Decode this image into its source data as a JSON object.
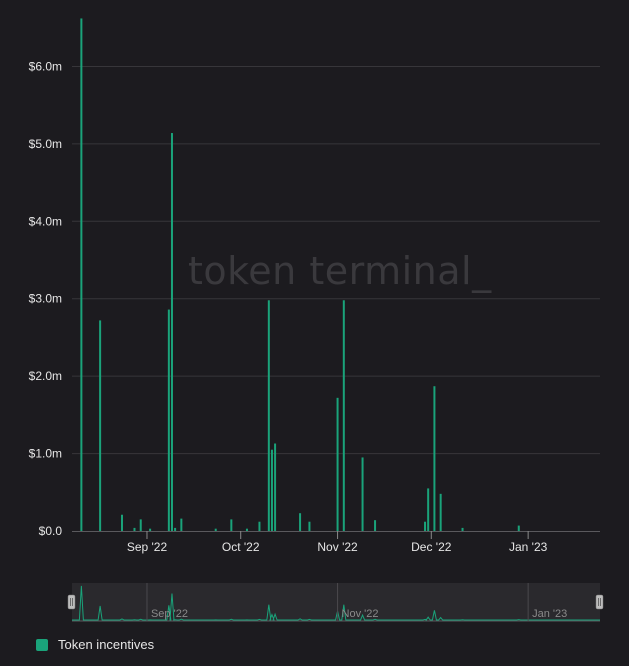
{
  "colors": {
    "background": "#1c1b1f",
    "series": "#1aa37a",
    "grid": "#37363a",
    "watermark": "#3a393d",
    "navigator_bg": "#2a292d"
  },
  "watermark": "token terminal_",
  "legend": {
    "label": "Token incentives"
  },
  "chart_data": {
    "type": "bar",
    "x_axis": {
      "type": "date",
      "range": [
        "2022-08-08",
        "2023-01-24"
      ],
      "ticks": [
        {
          "date": "2022-09-01",
          "label": "Sep '22"
        },
        {
          "date": "2022-10-01",
          "label": "Oct '22"
        },
        {
          "date": "2022-11-01",
          "label": "Nov '22"
        },
        {
          "date": "2022-12-01",
          "label": "Dec '22"
        },
        {
          "date": "2023-01-01",
          "label": "Jan '23"
        }
      ]
    },
    "y_axis": {
      "range": [
        0,
        6.6
      ],
      "unit": "$m",
      "ticks": [
        {
          "value": 0,
          "label": "$0.0"
        },
        {
          "value": 1,
          "label": "$1.0m"
        },
        {
          "value": 2,
          "label": "$2.0m"
        },
        {
          "value": 3,
          "label": "$3.0m"
        },
        {
          "value": 4,
          "label": "$4.0m"
        },
        {
          "value": 5,
          "label": "$5.0m"
        },
        {
          "value": 6,
          "label": "$6.0m"
        }
      ]
    },
    "grid": true,
    "legend_position": "bottom-left",
    "series": [
      {
        "name": "Token incentives",
        "points": [
          {
            "date": "2022-08-11",
            "value": 6.62
          },
          {
            "date": "2022-08-17",
            "value": 2.72
          },
          {
            "date": "2022-08-24",
            "value": 0.21
          },
          {
            "date": "2022-08-28",
            "value": 0.04
          },
          {
            "date": "2022-08-30",
            "value": 0.15
          },
          {
            "date": "2022-09-02",
            "value": 0.03
          },
          {
            "date": "2022-09-08",
            "value": 2.86
          },
          {
            "date": "2022-09-09",
            "value": 5.14
          },
          {
            "date": "2022-09-10",
            "value": 0.04
          },
          {
            "date": "2022-09-12",
            "value": 0.16
          },
          {
            "date": "2022-09-23",
            "value": 0.03
          },
          {
            "date": "2022-09-28",
            "value": 0.15
          },
          {
            "date": "2022-10-03",
            "value": 0.03
          },
          {
            "date": "2022-10-07",
            "value": 0.12
          },
          {
            "date": "2022-10-10",
            "value": 2.98
          },
          {
            "date": "2022-10-11",
            "value": 1.05
          },
          {
            "date": "2022-10-12",
            "value": 1.13
          },
          {
            "date": "2022-10-20",
            "value": 0.23
          },
          {
            "date": "2022-10-23",
            "value": 0.12
          },
          {
            "date": "2022-11-01",
            "value": 1.72
          },
          {
            "date": "2022-11-03",
            "value": 2.98
          },
          {
            "date": "2022-11-09",
            "value": 0.95
          },
          {
            "date": "2022-11-13",
            "value": 0.14
          },
          {
            "date": "2022-11-29",
            "value": 0.12
          },
          {
            "date": "2022-11-30",
            "value": 0.55
          },
          {
            "date": "2022-12-02",
            "value": 1.87
          },
          {
            "date": "2022-12-04",
            "value": 0.48
          },
          {
            "date": "2022-12-11",
            "value": 0.04
          },
          {
            "date": "2022-12-29",
            "value": 0.07
          }
        ]
      }
    ],
    "navigator_ticks": [
      "Sep '22",
      "Nov '22",
      "Jan '23"
    ]
  }
}
